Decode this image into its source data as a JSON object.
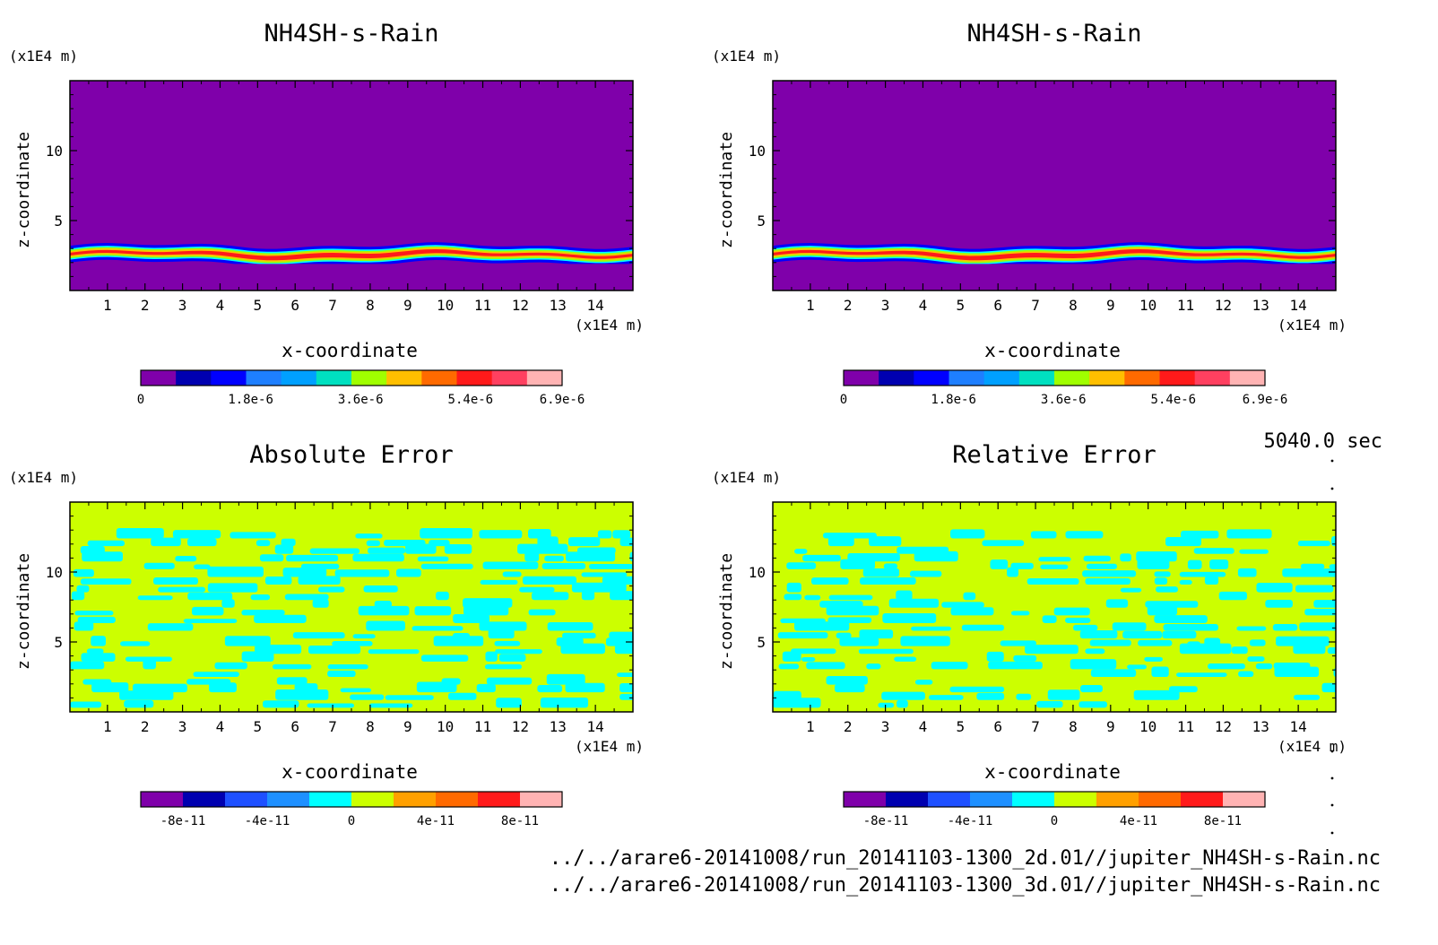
{
  "time_label": "5040.0 sec",
  "files": [
    "../../arare6-20141008/run_20141103-1300_2d.01//jupiter_NH4SH-s-Rain.nc",
    "../../arare6-20141008/run_20141103-1300_3d.01//jupiter_NH4SH-s-Rain.nc"
  ],
  "colors": {
    "background_field": "#7f00aa",
    "zero_band": "#ccff00",
    "negative_small": "#00ffff",
    "colorbar_palette": [
      "#7f00aa",
      "#0000b0",
      "#0000ff",
      "#1e7fff",
      "#00ffff",
      "#a0ff00",
      "#ffbf00",
      "#ff6a00",
      "#ff1a1a",
      "#ff4d6a",
      "#ffb3b3"
    ]
  },
  "chart_data": [
    {
      "type": "heatmap",
      "title": "NH4SH-s-Rain",
      "xlabel": "x-coordinate",
      "ylabel": "z-coordinate",
      "x_unit": "(x1E4 m)",
      "y_unit": "(x1E4 m)",
      "xlim": [
        0,
        15
      ],
      "ylim": [
        0,
        15
      ],
      "x_ticks": [
        "1",
        "2",
        "3",
        "4",
        "5",
        "6",
        "7",
        "8",
        "9",
        "10",
        "11",
        "12",
        "13",
        "14"
      ],
      "y_ticks": [
        "5",
        "10"
      ],
      "colorbar_ticks": [
        "0",
        "1.8e-6",
        "3.6e-6",
        "5.4e-6",
        "6.9e-6"
      ],
      "colorbar_range": [
        0,
        6.9e-06
      ],
      "field_description": "thin rain layer near z=2.5"
    },
    {
      "type": "heatmap",
      "title": "NH4SH-s-Rain",
      "xlabel": "x-coordinate",
      "ylabel": "z-coordinate",
      "x_unit": "(x1E4 m)",
      "y_unit": "(x1E4 m)",
      "xlim": [
        0,
        15
      ],
      "ylim": [
        0,
        15
      ],
      "x_ticks": [
        "1",
        "2",
        "3",
        "4",
        "5",
        "6",
        "7",
        "8",
        "9",
        "10",
        "11",
        "12",
        "13",
        "14"
      ],
      "y_ticks": [
        "5",
        "10"
      ],
      "colorbar_ticks": [
        "0",
        "1.8e-6",
        "3.6e-6",
        "5.4e-6",
        "6.9e-6"
      ],
      "colorbar_range": [
        0,
        6.9e-06
      ]
    },
    {
      "type": "heatmap",
      "title": "Absolute Error",
      "xlabel": "x-coordinate",
      "ylabel": "z-coordinate",
      "x_unit": "(x1E4 m)",
      "y_unit": "(x1E4 m)",
      "xlim": [
        0,
        15
      ],
      "ylim": [
        0,
        15
      ],
      "x_ticks": [
        "1",
        "2",
        "3",
        "4",
        "5",
        "6",
        "7",
        "8",
        "9",
        "10",
        "11",
        "12",
        "13",
        "14"
      ],
      "y_ticks": [
        "5",
        "10"
      ],
      "colorbar_ticks": [
        "-8e-11",
        "-4e-11",
        "0",
        "4e-11",
        "8e-11"
      ],
      "colorbar_range": [
        -1e-10,
        1e-10
      ]
    },
    {
      "type": "heatmap",
      "title": "Relative Error",
      "xlabel": "x-coordinate",
      "ylabel": "z-coordinate",
      "x_unit": "(x1E4 m)",
      "y_unit": "(x1E4 m)",
      "xlim": [
        0,
        15
      ],
      "ylim": [
        0,
        15
      ],
      "x_ticks": [
        "1",
        "2",
        "3",
        "4",
        "5",
        "6",
        "7",
        "8",
        "9",
        "10",
        "11",
        "12",
        "13",
        "14"
      ],
      "y_ticks": [
        "5",
        "10"
      ],
      "colorbar_ticks": [
        "-8e-11",
        "-4e-11",
        "0",
        "4e-11",
        "8e-11"
      ],
      "colorbar_range": [
        -1e-10,
        1e-10
      ]
    }
  ]
}
